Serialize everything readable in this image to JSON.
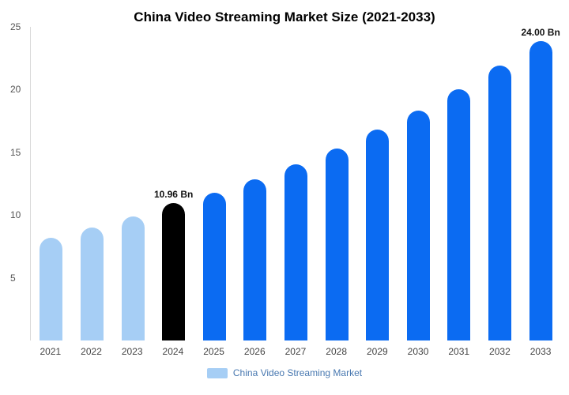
{
  "title": "China Video Streaming Market Size (2021-2033)",
  "legend": {
    "label": "China Video Streaming Market",
    "swatch_color": "#A6CEF5"
  },
  "colors": {
    "light_blue": "#A6CEF5",
    "bright_blue": "#0B6BF2",
    "black": "#000000",
    "axis_line": "#D9D9D9",
    "tick_text": "#555555",
    "year_text": "#444444",
    "annotation_text": "#111111",
    "legend_text": "#4878B0"
  },
  "chart_data": {
    "type": "bar",
    "title": "China Video Streaming Market Size (2021-2033)",
    "series_name": "China Video Streaming Market",
    "categories": [
      "2021",
      "2022",
      "2023",
      "2024",
      "2025",
      "2026",
      "2027",
      "2028",
      "2029",
      "2030",
      "2031",
      "2032",
      "2033"
    ],
    "values": [
      8.2,
      9.0,
      9.9,
      10.96,
      11.8,
      12.85,
      14.05,
      15.3,
      16.8,
      18.3,
      20.0,
      21.9,
      24.0
    ],
    "bar_colors": [
      "#A6CEF5",
      "#A6CEF5",
      "#A6CEF5",
      "#000000",
      "#0B6BF2",
      "#0B6BF2",
      "#0B6BF2",
      "#0B6BF2",
      "#0B6BF2",
      "#0B6BF2",
      "#0B6BF2",
      "#0B6BF2",
      "#0B6BF2"
    ],
    "annotations": [
      {
        "category": "2024",
        "label": "10.96 Bn"
      },
      {
        "category": "2033",
        "label": "24.00 Bn"
      }
    ],
    "xlabel": "",
    "ylabel": "",
    "ylim": [
      0,
      25
    ],
    "yticks": [
      5,
      10,
      15,
      20,
      25
    ],
    "grid": false,
    "legend_position": "bottom",
    "unit": "Bn"
  }
}
